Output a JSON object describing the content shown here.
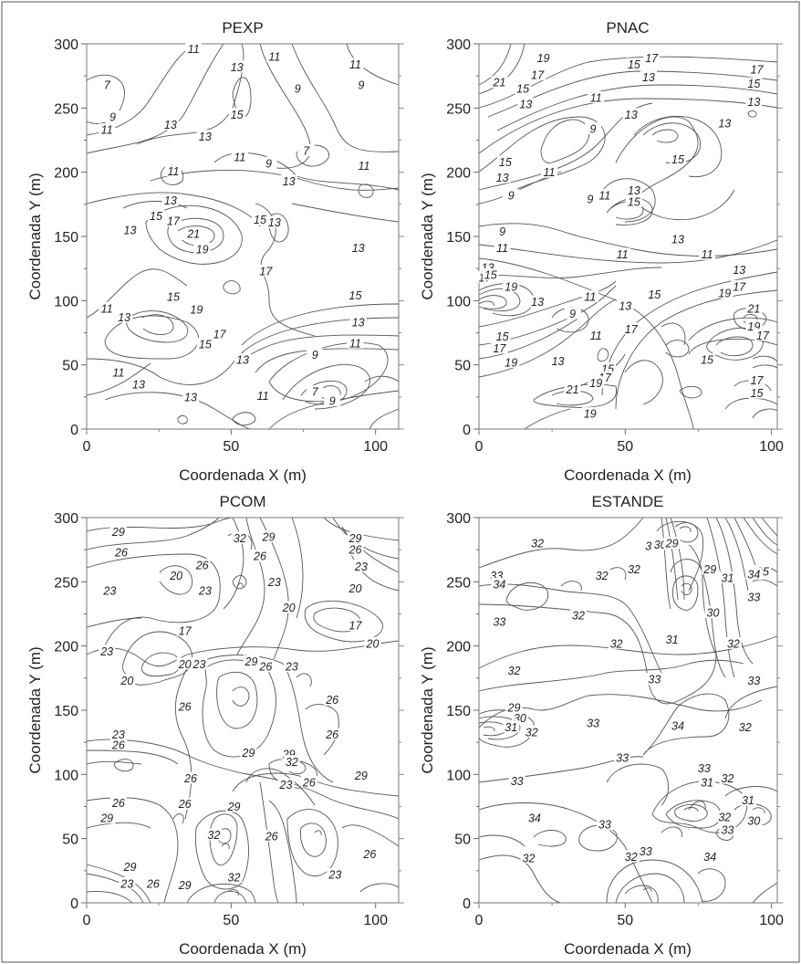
{
  "chart_data": [
    {
      "type": "contour",
      "title": "PEXP",
      "xlabel": "Coordenada X (m)",
      "ylabel": "Coordenada Y (m)",
      "xlim": [
        0,
        108
      ],
      "ylim": [
        0,
        300
      ],
      "xticks": [
        "0",
        "50",
        "100"
      ],
      "yticks": [
        "0",
        "50",
        "100",
        "150",
        "200",
        "250",
        "300"
      ],
      "contour_labels": [
        {
          "x": 7,
          "y": 268,
          "text": "7"
        },
        {
          "x": 9,
          "y": 243,
          "text": "9"
        },
        {
          "x": 7,
          "y": 233,
          "text": "11"
        },
        {
          "x": 37,
          "y": 296,
          "text": "11"
        },
        {
          "x": 52,
          "y": 282,
          "text": "13"
        },
        {
          "x": 65,
          "y": 290,
          "text": "11"
        },
        {
          "x": 73,
          "y": 265,
          "text": "9"
        },
        {
          "x": 93,
          "y": 284,
          "text": "11"
        },
        {
          "x": 95,
          "y": 268,
          "text": "9"
        },
        {
          "x": 29,
          "y": 237,
          "text": "13"
        },
        {
          "x": 41,
          "y": 228,
          "text": "13"
        },
        {
          "x": 52,
          "y": 245,
          "text": "15"
        },
        {
          "x": 53,
          "y": 212,
          "text": "11"
        },
        {
          "x": 63,
          "y": 207,
          "text": "9"
        },
        {
          "x": 76,
          "y": 217,
          "text": "7"
        },
        {
          "x": 96,
          "y": 205,
          "text": "11"
        },
        {
          "x": 70,
          "y": 193,
          "text": "13"
        },
        {
          "x": 30,
          "y": 201,
          "text": "11"
        },
        {
          "x": 29,
          "y": 178,
          "text": "13"
        },
        {
          "x": 24,
          "y": 166,
          "text": "15"
        },
        {
          "x": 30,
          "y": 162,
          "text": "17"
        },
        {
          "x": 15,
          "y": 155,
          "text": "13"
        },
        {
          "x": 37,
          "y": 152,
          "text": "21"
        },
        {
          "x": 40,
          "y": 140,
          "text": "19"
        },
        {
          "x": 60,
          "y": 163,
          "text": "15"
        },
        {
          "x": 65,
          "y": 161,
          "text": "13"
        },
        {
          "x": 94,
          "y": 141,
          "text": "13"
        },
        {
          "x": 62,
          "y": 123,
          "text": "17"
        },
        {
          "x": 93,
          "y": 104,
          "text": "15"
        },
        {
          "x": 38,
          "y": 93,
          "text": "19"
        },
        {
          "x": 30,
          "y": 103,
          "text": "15"
        },
        {
          "x": 7,
          "y": 94,
          "text": "11"
        },
        {
          "x": 13,
          "y": 87,
          "text": "13"
        },
        {
          "x": 46,
          "y": 74,
          "text": "17"
        },
        {
          "x": 41,
          "y": 66,
          "text": "15"
        },
        {
          "x": 94,
          "y": 83,
          "text": "13"
        },
        {
          "x": 93,
          "y": 67,
          "text": "11"
        },
        {
          "x": 54,
          "y": 54,
          "text": "13"
        },
        {
          "x": 79,
          "y": 58,
          "text": "9"
        },
        {
          "x": 11,
          "y": 44,
          "text": "11"
        },
        {
          "x": 18,
          "y": 35,
          "text": "13"
        },
        {
          "x": 36,
          "y": 25,
          "text": "13"
        },
        {
          "x": 61,
          "y": 26,
          "text": "11"
        },
        {
          "x": 79,
          "y": 29,
          "text": "7"
        },
        {
          "x": 85,
          "y": 22,
          "text": "9"
        }
      ]
    },
    {
      "type": "contour",
      "title": "PNAC",
      "xlabel": "Coordenada X (m)",
      "ylabel": "Coordenada Y (m)",
      "xlim": [
        0,
        102
      ],
      "ylim": [
        0,
        300
      ],
      "xticks": [
        "0",
        "50",
        "100"
      ],
      "yticks": [
        "0",
        "50",
        "100",
        "150",
        "200",
        "250",
        "300"
      ],
      "contour_labels": [
        {
          "x": 7,
          "y": 270,
          "text": "21"
        },
        {
          "x": 22,
          "y": 289,
          "text": "19"
        },
        {
          "x": 20,
          "y": 276,
          "text": "17"
        },
        {
          "x": 15,
          "y": 265,
          "text": "15"
        },
        {
          "x": 16,
          "y": 253,
          "text": "13"
        },
        {
          "x": 53,
          "y": 284,
          "text": "15"
        },
        {
          "x": 59,
          "y": 289,
          "text": "17"
        },
        {
          "x": 58,
          "y": 274,
          "text": "13"
        },
        {
          "x": 95,
          "y": 280,
          "text": "17"
        },
        {
          "x": 94,
          "y": 269,
          "text": "15"
        },
        {
          "x": 94,
          "y": 255,
          "text": "13"
        },
        {
          "x": 40,
          "y": 258,
          "text": "11"
        },
        {
          "x": 39,
          "y": 234,
          "text": "9"
        },
        {
          "x": 52,
          "y": 245,
          "text": "13"
        },
        {
          "x": 84,
          "y": 238,
          "text": "13"
        },
        {
          "x": 68,
          "y": 210,
          "text": "15"
        },
        {
          "x": 9,
          "y": 208,
          "text": "15"
        },
        {
          "x": 8,
          "y": 196,
          "text": "13"
        },
        {
          "x": 24,
          "y": 200,
          "text": "11"
        },
        {
          "x": 11,
          "y": 182,
          "text": "9"
        },
        {
          "x": 38,
          "y": 179,
          "text": "9"
        },
        {
          "x": 43,
          "y": 182,
          "text": "11"
        },
        {
          "x": 53,
          "y": 186,
          "text": "13"
        },
        {
          "x": 53,
          "y": 177,
          "text": "15"
        },
        {
          "x": 8,
          "y": 154,
          "text": "9"
        },
        {
          "x": 8,
          "y": 141,
          "text": "11"
        },
        {
          "x": 68,
          "y": 148,
          "text": "13"
        },
        {
          "x": 49,
          "y": 136,
          "text": "11"
        },
        {
          "x": 78,
          "y": 136,
          "text": "11"
        },
        {
          "x": 3,
          "y": 126,
          "text": "13"
        },
        {
          "x": 2,
          "y": 118,
          "text": "17"
        },
        {
          "x": 4,
          "y": 120,
          "text": "15"
        },
        {
          "x": 11,
          "y": 111,
          "text": "19"
        },
        {
          "x": 89,
          "y": 124,
          "text": "13"
        },
        {
          "x": 89,
          "y": 111,
          "text": "17"
        },
        {
          "x": 84,
          "y": 106,
          "text": "19"
        },
        {
          "x": 20,
          "y": 99,
          "text": "13"
        },
        {
          "x": 38,
          "y": 103,
          "text": "11"
        },
        {
          "x": 32,
          "y": 90,
          "text": "9"
        },
        {
          "x": 50,
          "y": 96,
          "text": "13"
        },
        {
          "x": 60,
          "y": 105,
          "text": "15"
        },
        {
          "x": 94,
          "y": 94,
          "text": "21"
        },
        {
          "x": 94,
          "y": 80,
          "text": "19"
        },
        {
          "x": 97,
          "y": 73,
          "text": "17"
        },
        {
          "x": 8,
          "y": 72,
          "text": "15"
        },
        {
          "x": 7,
          "y": 63,
          "text": "17"
        },
        {
          "x": 11,
          "y": 52,
          "text": "19"
        },
        {
          "x": 40,
          "y": 73,
          "text": "11"
        },
        {
          "x": 52,
          "y": 78,
          "text": "17"
        },
        {
          "x": 27,
          "y": 53,
          "text": "13"
        },
        {
          "x": 44,
          "y": 47,
          "text": "15"
        },
        {
          "x": 43,
          "y": 40,
          "text": "17"
        },
        {
          "x": 40,
          "y": 36,
          "text": "19"
        },
        {
          "x": 32,
          "y": 31,
          "text": "21"
        },
        {
          "x": 38,
          "y": 12,
          "text": "19"
        },
        {
          "x": 78,
          "y": 54,
          "text": "15"
        },
        {
          "x": 95,
          "y": 38,
          "text": "17"
        },
        {
          "x": 95,
          "y": 28,
          "text": "15"
        }
      ]
    },
    {
      "type": "contour",
      "title": "PCOM",
      "xlabel": "Coordenada X (m)",
      "ylabel": "Coordenada Y (m)",
      "xlim": [
        0,
        108
      ],
      "ylim": [
        0,
        300
      ],
      "xticks": [
        "0",
        "50",
        "100"
      ],
      "yticks": [
        "0",
        "50",
        "100",
        "150",
        "200",
        "250",
        "300"
      ],
      "contour_labels": [
        {
          "x": 11,
          "y": 289,
          "text": "29"
        },
        {
          "x": 12,
          "y": 273,
          "text": "26"
        },
        {
          "x": 53,
          "y": 284,
          "text": "32"
        },
        {
          "x": 63,
          "y": 285,
          "text": "29"
        },
        {
          "x": 60,
          "y": 270,
          "text": "26"
        },
        {
          "x": 93,
          "y": 284,
          "text": "29"
        },
        {
          "x": 93,
          "y": 275,
          "text": "26"
        },
        {
          "x": 95,
          "y": 262,
          "text": "23"
        },
        {
          "x": 31,
          "y": 255,
          "text": "20"
        },
        {
          "x": 40,
          "y": 263,
          "text": "26"
        },
        {
          "x": 41,
          "y": 243,
          "text": "23"
        },
        {
          "x": 65,
          "y": 250,
          "text": "23"
        },
        {
          "x": 93,
          "y": 245,
          "text": "20"
        },
        {
          "x": 8,
          "y": 243,
          "text": "23"
        },
        {
          "x": 70,
          "y": 230,
          "text": "20"
        },
        {
          "x": 34,
          "y": 212,
          "text": "17"
        },
        {
          "x": 93,
          "y": 216,
          "text": "17"
        },
        {
          "x": 99,
          "y": 202,
          "text": "20"
        },
        {
          "x": 7,
          "y": 196,
          "text": "23"
        },
        {
          "x": 34,
          "y": 186,
          "text": "20"
        },
        {
          "x": 39,
          "y": 186,
          "text": "23"
        },
        {
          "x": 57,
          "y": 188,
          "text": "29"
        },
        {
          "x": 62,
          "y": 184,
          "text": "26"
        },
        {
          "x": 71,
          "y": 184,
          "text": "23"
        },
        {
          "x": 14,
          "y": 173,
          "text": "20"
        },
        {
          "x": 34,
          "y": 153,
          "text": "26"
        },
        {
          "x": 85,
          "y": 158,
          "text": "26"
        },
        {
          "x": 11,
          "y": 131,
          "text": "23"
        },
        {
          "x": 11,
          "y": 123,
          "text": "26"
        },
        {
          "x": 85,
          "y": 131,
          "text": "26"
        },
        {
          "x": 56,
          "y": 117,
          "text": "29"
        },
        {
          "x": 70,
          "y": 116,
          "text": "29"
        },
        {
          "x": 71,
          "y": 110,
          "text": "32"
        },
        {
          "x": 36,
          "y": 97,
          "text": "26"
        },
        {
          "x": 69,
          "y": 92,
          "text": "23"
        },
        {
          "x": 77,
          "y": 94,
          "text": "26"
        },
        {
          "x": 95,
          "y": 99,
          "text": "29"
        },
        {
          "x": 11,
          "y": 78,
          "text": "26"
        },
        {
          "x": 34,
          "y": 77,
          "text": "26"
        },
        {
          "x": 51,
          "y": 75,
          "text": "29"
        },
        {
          "x": 7,
          "y": 66,
          "text": "29"
        },
        {
          "x": 44,
          "y": 53,
          "text": "32"
        },
        {
          "x": 64,
          "y": 52,
          "text": "26"
        },
        {
          "x": 86,
          "y": 22,
          "text": "23"
        },
        {
          "x": 98,
          "y": 38,
          "text": "26"
        },
        {
          "x": 15,
          "y": 28,
          "text": "29"
        },
        {
          "x": 14,
          "y": 15,
          "text": "23"
        },
        {
          "x": 23,
          "y": 15,
          "text": "26"
        },
        {
          "x": 34,
          "y": 14,
          "text": "29"
        },
        {
          "x": 51,
          "y": 20,
          "text": "32"
        }
      ]
    },
    {
      "type": "contour",
      "title": "ESTANDE",
      "xlabel": "Coordenada X (m)",
      "ylabel": "Coordenada Y (m)",
      "xlim": [
        0,
        102
      ],
      "ylim": [
        0,
        300
      ],
      "xticks": [
        "0",
        "50",
        "100"
      ],
      "yticks": [
        "0",
        "50",
        "100",
        "150",
        "200",
        "250",
        "300"
      ],
      "contour_labels": [
        {
          "x": 20,
          "y": 280,
          "text": "32"
        },
        {
          "x": 59,
          "y": 278,
          "text": "31"
        },
        {
          "x": 62,
          "y": 279,
          "text": "30"
        },
        {
          "x": 66,
          "y": 280,
          "text": "29"
        },
        {
          "x": 97,
          "y": 258,
          "text": "35"
        },
        {
          "x": 94,
          "y": 256,
          "text": "34"
        },
        {
          "x": 94,
          "y": 238,
          "text": "33"
        },
        {
          "x": 6,
          "y": 255,
          "text": "33"
        },
        {
          "x": 7,
          "y": 248,
          "text": "34"
        },
        {
          "x": 42,
          "y": 255,
          "text": "32"
        },
        {
          "x": 53,
          "y": 260,
          "text": "32"
        },
        {
          "x": 79,
          "y": 260,
          "text": "29"
        },
        {
          "x": 85,
          "y": 253,
          "text": "31"
        },
        {
          "x": 7,
          "y": 219,
          "text": "33"
        },
        {
          "x": 34,
          "y": 224,
          "text": "32"
        },
        {
          "x": 80,
          "y": 226,
          "text": "30"
        },
        {
          "x": 47,
          "y": 202,
          "text": "32"
        },
        {
          "x": 66,
          "y": 205,
          "text": "31"
        },
        {
          "x": 87,
          "y": 202,
          "text": "32"
        },
        {
          "x": 12,
          "y": 181,
          "text": "32"
        },
        {
          "x": 60,
          "y": 174,
          "text": "33"
        },
        {
          "x": 94,
          "y": 173,
          "text": "33"
        },
        {
          "x": 12,
          "y": 152,
          "text": "29"
        },
        {
          "x": 14,
          "y": 144,
          "text": "30"
        },
        {
          "x": 11,
          "y": 137,
          "text": "31"
        },
        {
          "x": 18,
          "y": 133,
          "text": "32"
        },
        {
          "x": 39,
          "y": 140,
          "text": "33"
        },
        {
          "x": 68,
          "y": 138,
          "text": "34"
        },
        {
          "x": 91,
          "y": 137,
          "text": "32"
        },
        {
          "x": 49,
          "y": 113,
          "text": "33"
        },
        {
          "x": 77,
          "y": 105,
          "text": "33"
        },
        {
          "x": 78,
          "y": 94,
          "text": "31"
        },
        {
          "x": 85,
          "y": 97,
          "text": "32"
        },
        {
          "x": 13,
          "y": 95,
          "text": "33"
        },
        {
          "x": 92,
          "y": 80,
          "text": "31"
        },
        {
          "x": 94,
          "y": 64,
          "text": "30"
        },
        {
          "x": 19,
          "y": 66,
          "text": "34"
        },
        {
          "x": 84,
          "y": 67,
          "text": "32"
        },
        {
          "x": 85,
          "y": 57,
          "text": "33"
        },
        {
          "x": 43,
          "y": 61,
          "text": "33"
        },
        {
          "x": 57,
          "y": 40,
          "text": "33"
        },
        {
          "x": 52,
          "y": 36,
          "text": "32"
        },
        {
          "x": 79,
          "y": 36,
          "text": "34"
        },
        {
          "x": 17,
          "y": 35,
          "text": "32"
        }
      ]
    }
  ]
}
